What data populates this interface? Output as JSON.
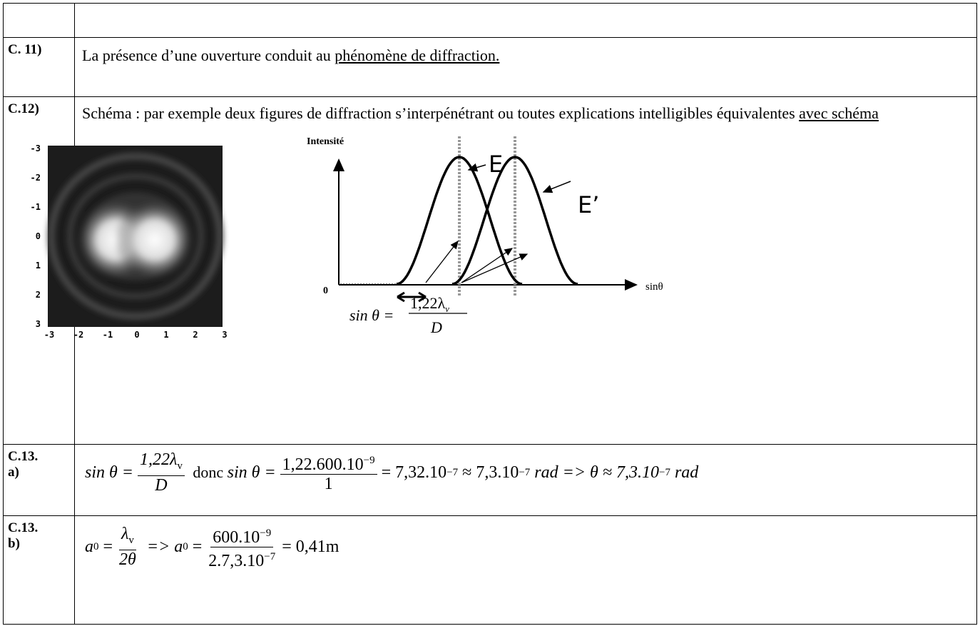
{
  "rows": [
    {
      "label": [
        "C. 11)"
      ],
      "text": "La présence d’une ouverture conduit au ",
      "underlined": "phénomène de diffraction."
    },
    {
      "label": [
        "C.12)"
      ],
      "text": "Schéma : par exemple deux figures de diffraction s’interpénétrant ou toutes explications intelligibles équivalentes ",
      "underlined": "avec schéma"
    },
    {
      "label": [
        "C.13.",
        "a)"
      ],
      "formula": [
        "sin θ =",
        "1,22λ",
        "v",
        "D",
        " donc ",
        "sin θ =",
        "1,22.600.10",
        "−9",
        "1",
        "= 7,32.10",
        "−7",
        " ≈ 7,3.10",
        "−7",
        " rad => θ ≈ 7,3.10",
        "−7",
        " rad"
      ]
    },
    {
      "label": [
        "C.13.",
        "b)"
      ],
      "formula": [
        "a",
        "0",
        " =",
        "λ",
        "v",
        "2θ",
        " => a",
        "0",
        " =",
        "600.10",
        "−9",
        "2.7,3.10",
        "−7",
        "= 0,41m"
      ]
    }
  ],
  "figure": {
    "pattern": {
      "yticks": [
        "-3",
        "-2",
        "-1",
        "0",
        "1",
        "2",
        "3"
      ],
      "xticks": [
        "-3",
        "-2",
        "-1",
        "0",
        "1",
        "2",
        "3"
      ]
    },
    "graph": {
      "y_label": "Intensité",
      "origin": "0",
      "x_label": "sinθ",
      "peak1": "E",
      "peak2": "E’",
      "formula": {
        "lhs": "sin θ =",
        "num": "1,22λ",
        "sub": "v",
        "den": "D"
      }
    }
  }
}
